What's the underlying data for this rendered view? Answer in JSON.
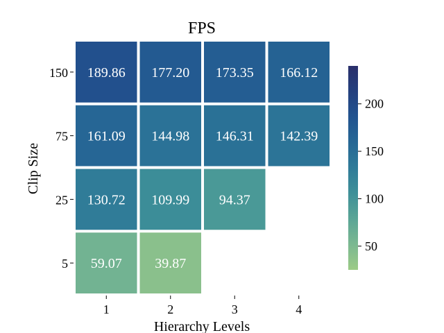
{
  "chart_data": {
    "type": "heatmap",
    "title": "FPS",
    "xlabel": "Hierarchy Levels",
    "ylabel": "Clip Size",
    "x_categories": [
      "1",
      "2",
      "3",
      "4"
    ],
    "y_categories": [
      "150",
      "75",
      "25",
      "5"
    ],
    "values": [
      [
        189.86,
        177.2,
        173.35,
        166.12
      ],
      [
        161.09,
        144.98,
        146.31,
        142.39
      ],
      [
        130.72,
        109.99,
        94.37,
        null
      ],
      [
        59.07,
        39.87,
        null,
        null
      ]
    ],
    "value_labels": [
      [
        "189.86",
        "177.20",
        "173.35",
        "166.12"
      ],
      [
        "161.09",
        "144.98",
        "146.31",
        "142.39"
      ],
      [
        "130.72",
        "109.99",
        "94.37",
        ""
      ],
      [
        "59.07",
        "39.87",
        "",
        ""
      ]
    ],
    "colorbar": {
      "min": 25,
      "max": 240,
      "ticks": [
        50,
        100,
        150,
        200
      ],
      "tick_labels": [
        "50",
        "100",
        "150",
        "200"
      ]
    },
    "colormap": [
      "#9ccb86",
      "#7bb891",
      "#5aa596",
      "#3f9098",
      "#2f7b98",
      "#266795",
      "#22538f",
      "#24407e",
      "#2a2f6b"
    ],
    "grid": false,
    "legend": "colorbar-right"
  }
}
